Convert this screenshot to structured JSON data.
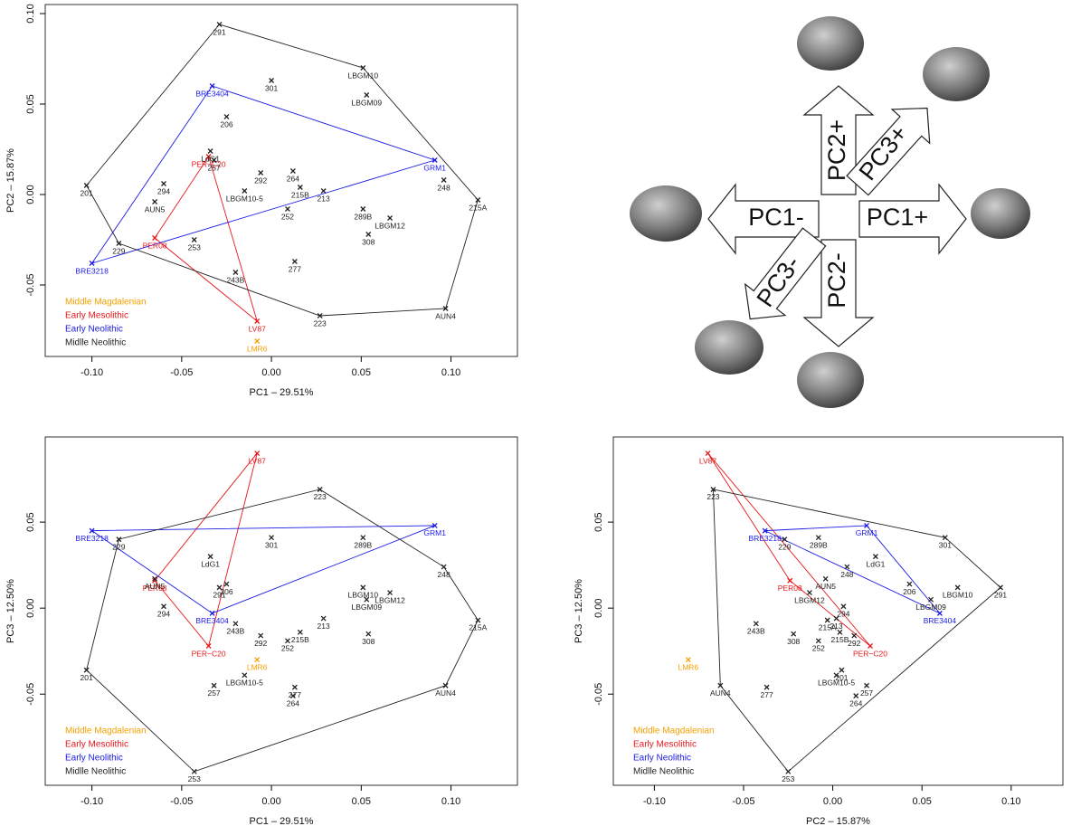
{
  "chart_data": [
    {
      "type": "scatter",
      "x_label": "PC1 – 29.51%",
      "y_label": "PC2 – 15.87%",
      "xlim": [
        -0.126,
        0.137
      ],
      "ylim": [
        -0.0895,
        0.105
      ],
      "xticks": [
        {
          "value": -0.1,
          "label": "-0.10"
        },
        {
          "value": -0.05,
          "label": "-0.05"
        },
        {
          "value": 0,
          "label": "0.00"
        },
        {
          "value": 0.05,
          "label": "0.05"
        },
        {
          "value": 0.1,
          "label": "0.10"
        }
      ],
      "yticks": [
        {
          "value": -0.05,
          "label": "-0.05"
        },
        {
          "value": 0,
          "label": "0.00"
        },
        {
          "value": 0.05,
          "label": "0.05"
        },
        {
          "value": 0.1,
          "label": "0.10"
        }
      ],
      "legend": "lower left",
      "series": [
        {
          "name": "Middle Magdalenian",
          "color": "#f5a000",
          "labels": [
            "LMR6"
          ],
          "x": [
            -0.008
          ],
          "y": [
            -0.081
          ]
        },
        {
          "name": "Early Mesolithic",
          "color": "#e8161a",
          "labels": [
            "LV87",
            "PER08",
            "PER−C20"
          ],
          "x": [
            -0.008,
            -0.065,
            -0.035
          ],
          "y": [
            -0.07,
            -0.024,
            0.021
          ]
        },
        {
          "name": "Early Neolithic",
          "color": "#1a1ae6",
          "labels": [
            "BRE3404",
            "GRM1",
            "BRE3218"
          ],
          "x": [
            -0.033,
            0.091,
            -0.1
          ],
          "y": [
            0.06,
            0.019,
            -0.038
          ]
        },
        {
          "name": "Midlle Neolithic",
          "color": "#222222",
          "labels": [
            "291",
            "LBGM10",
            "301",
            "LBGM09",
            "206",
            "LdG1",
            "257",
            "292",
            "264",
            "201",
            "294",
            "215B",
            "213",
            "LBGM10-5",
            "248",
            "215A",
            "AUN5",
            "252",
            "289B",
            "LBGM12",
            "253",
            "308",
            "229",
            "243B",
            "277",
            "AUN4",
            "223"
          ],
          "x": [
            -0.029,
            0.051,
            0.0,
            0.053,
            -0.025,
            -0.034,
            -0.032,
            -0.006,
            0.012,
            -0.103,
            -0.06,
            0.016,
            0.029,
            -0.015,
            0.096,
            0.115,
            -0.065,
            0.009,
            0.051,
            0.066,
            -0.043,
            0.054,
            -0.085,
            -0.02,
            0.013,
            0.097,
            0.027
          ],
          "y": [
            0.094,
            0.07,
            0.063,
            0.055,
            0.043,
            0.024,
            0.019,
            0.012,
            0.013,
            0.005,
            0.006,
            0.004,
            0.002,
            0.002,
            0.008,
            -0.003,
            -0.004,
            -0.008,
            -0.008,
            -0.013,
            -0.025,
            -0.022,
            -0.027,
            -0.043,
            -0.037,
            -0.063,
            -0.067
          ]
        }
      ]
    },
    {
      "type": "scatter",
      "x_label": "PC1 – 29.51%",
      "y_label": "PC3 – 12.50%",
      "xlim": [
        -0.126,
        0.137
      ],
      "ylim": [
        -0.103,
        0.0995
      ],
      "xticks": [
        {
          "value": -0.1,
          "label": "-0.10"
        },
        {
          "value": -0.05,
          "label": "-0.05"
        },
        {
          "value": 0,
          "label": "0.00"
        },
        {
          "value": 0.05,
          "label": "0.05"
        },
        {
          "value": 0.1,
          "label": "0.10"
        }
      ],
      "yticks": [
        {
          "value": -0.05,
          "label": "-0.05"
        },
        {
          "value": 0,
          "label": "0.00"
        },
        {
          "value": 0.05,
          "label": "0.05"
        }
      ],
      "legend": "lower left",
      "series": [
        {
          "name": "Middle Magdalenian",
          "color": "#f5a000",
          "labels": [
            "LMR6"
          ],
          "x": [
            -0.008
          ],
          "y": [
            -0.03
          ]
        },
        {
          "name": "Early Mesolithic",
          "color": "#e8161a",
          "labels": [
            "LV87",
            "PER08",
            "PER−C20"
          ],
          "x": [
            -0.008,
            -0.065,
            -0.035
          ],
          "y": [
            0.09,
            0.016,
            -0.022
          ]
        },
        {
          "name": "Early Neolithic",
          "color": "#1a1ae6",
          "labels": [
            "BRE3404",
            "GRM1",
            "BRE3218"
          ],
          "x": [
            -0.033,
            0.091,
            -0.1
          ],
          "y": [
            -0.003,
            0.048,
            0.045
          ]
        },
        {
          "name": "Midlle Neolithic",
          "color": "#222222",
          "labels": [
            "291",
            "LBGM10",
            "301",
            "LBGM09",
            "206",
            "LdG1",
            "257",
            "292",
            "264",
            "201",
            "294",
            "215B",
            "213",
            "LBGM10-5",
            "248",
            "215A",
            "AUN5",
            "252",
            "289B",
            "LBGM12",
            "253",
            "308",
            "229",
            "243B",
            "277",
            "AUN4",
            "223"
          ],
          "x": [
            -0.029,
            0.051,
            0.0,
            0.053,
            -0.025,
            -0.034,
            -0.032,
            -0.006,
            0.012,
            -0.103,
            -0.06,
            0.016,
            0.029,
            -0.015,
            0.096,
            0.115,
            -0.065,
            0.009,
            0.051,
            0.066,
            -0.043,
            0.054,
            -0.085,
            -0.02,
            0.013,
            0.097,
            0.027
          ],
          "y": [
            0.012,
            0.012,
            0.041,
            0.005,
            0.014,
            0.03,
            -0.045,
            -0.016,
            -0.051,
            -0.036,
            0.001,
            -0.014,
            -0.006,
            -0.039,
            0.024,
            -0.007,
            0.017,
            -0.019,
            0.041,
            0.009,
            -0.095,
            -0.015,
            0.04,
            -0.009,
            -0.046,
            -0.045,
            0.069
          ]
        }
      ]
    },
    {
      "type": "scatter",
      "x_label": "PC2 – 15.87%",
      "y_label": "PC3 – 12.50%",
      "xlim": [
        -0.123,
        0.129
      ],
      "ylim": [
        -0.103,
        0.0995
      ],
      "xticks": [
        {
          "value": -0.1,
          "label": "-0.10"
        },
        {
          "value": -0.05,
          "label": "-0.05"
        },
        {
          "value": 0,
          "label": "0.00"
        },
        {
          "value": 0.05,
          "label": "0.05"
        },
        {
          "value": 0.1,
          "label": "0.10"
        }
      ],
      "yticks": [
        {
          "value": -0.05,
          "label": "-0.05"
        },
        {
          "value": 0,
          "label": "0.00"
        },
        {
          "value": 0.05,
          "label": "0.05"
        }
      ],
      "legend": "lower left",
      "series": [
        {
          "name": "Middle Magdalenian",
          "color": "#f5a000",
          "labels": [
            "LMR6"
          ],
          "x": [
            -0.081
          ],
          "y": [
            -0.03
          ]
        },
        {
          "name": "Early Mesolithic",
          "color": "#e8161a",
          "labels": [
            "LV87",
            "PER08",
            "PER−C20"
          ],
          "x": [
            -0.07,
            -0.024,
            0.021
          ],
          "y": [
            0.09,
            0.016,
            -0.022
          ]
        },
        {
          "name": "Early Neolithic",
          "color": "#1a1ae6",
          "labels": [
            "BRE3404",
            "GRM1",
            "BRE3218"
          ],
          "x": [
            0.06,
            0.019,
            -0.038
          ],
          "y": [
            -0.003,
            0.048,
            0.045
          ]
        },
        {
          "name": "Midlle Neolithic",
          "color": "#222222",
          "labels": [
            "291",
            "LBGM10",
            "301",
            "LBGM09",
            "206",
            "LdG1",
            "257",
            "292",
            "264",
            "201",
            "294",
            "215B",
            "213",
            "LBGM10-5",
            "248",
            "215A",
            "AUN5",
            "252",
            "289B",
            "LBGM12",
            "253",
            "308",
            "229",
            "243B",
            "277",
            "AUN4",
            "223"
          ],
          "x": [
            0.094,
            0.07,
            0.063,
            0.055,
            0.043,
            0.024,
            0.019,
            0.012,
            0.013,
            0.005,
            0.006,
            0.004,
            0.002,
            0.002,
            0.008,
            -0.003,
            -0.004,
            -0.008,
            -0.008,
            -0.013,
            -0.025,
            -0.022,
            -0.027,
            -0.043,
            -0.037,
            -0.063,
            -0.067
          ],
          "y": [
            0.012,
            0.012,
            0.041,
            0.005,
            0.014,
            0.03,
            -0.045,
            -0.016,
            -0.051,
            -0.036,
            0.001,
            -0.014,
            -0.006,
            -0.039,
            0.024,
            -0.007,
            0.017,
            -0.019,
            0.041,
            0.009,
            -0.095,
            -0.015,
            0.04,
            -0.009,
            -0.046,
            -0.045,
            0.069
          ]
        }
      ]
    }
  ],
  "diagram": {
    "arrows": [
      {
        "label": "PC1+"
      },
      {
        "label": "PC1-"
      },
      {
        "label": "PC2+"
      },
      {
        "label": "PC2-"
      },
      {
        "label": "PC3+"
      },
      {
        "label": "PC3-"
      }
    ]
  }
}
